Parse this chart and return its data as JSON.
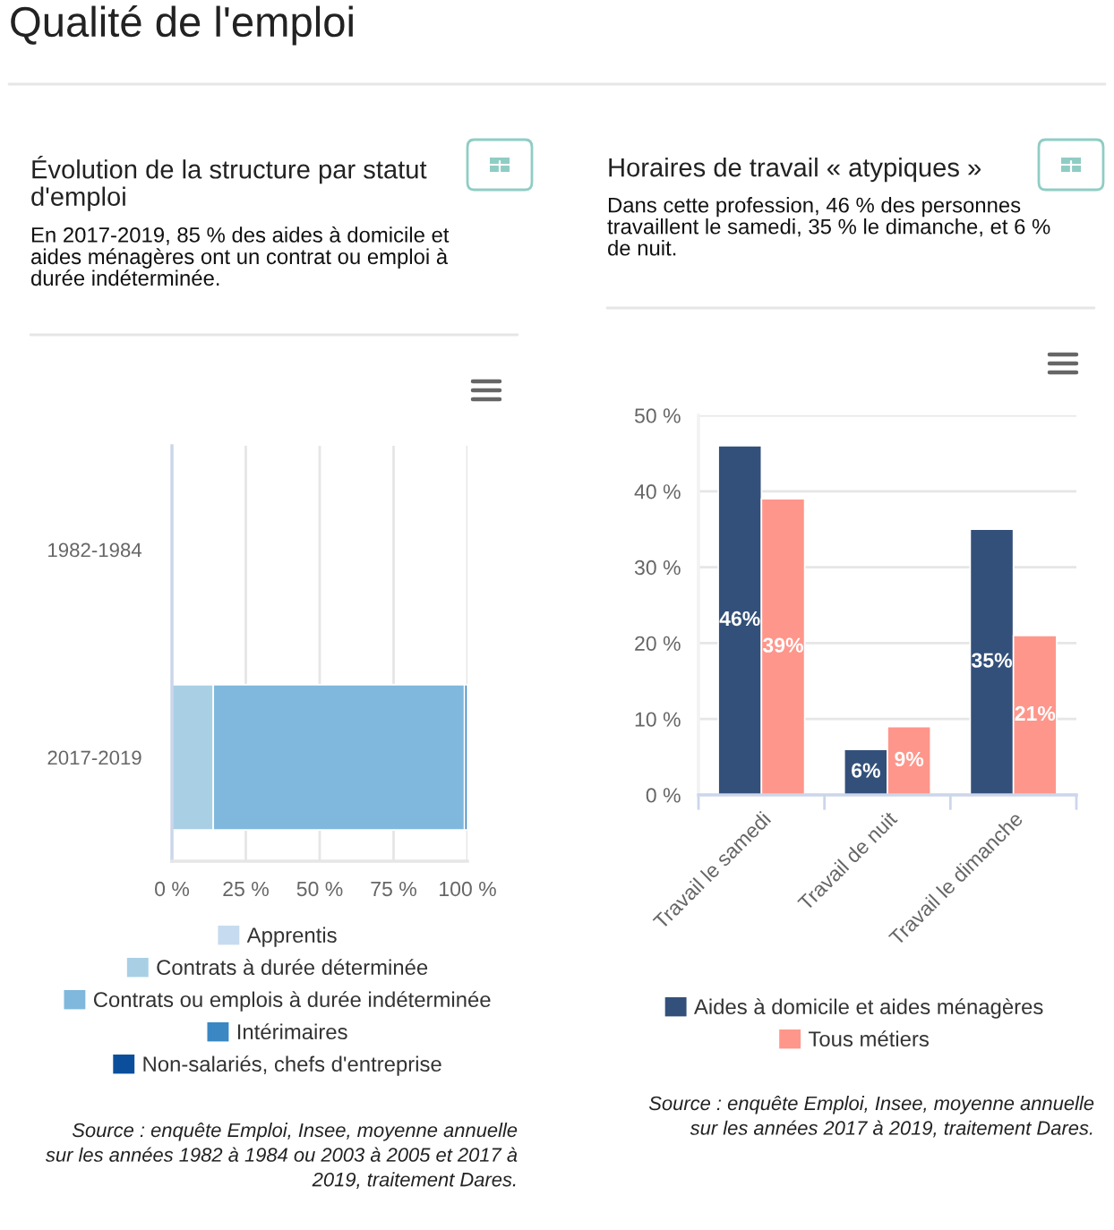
{
  "chart_data": [
    {
      "type": "other",
      "title": "Qualité de l'emploi"
    },
    {
      "type": "bar",
      "orientation": "horizontal",
      "stacked": true,
      "title": "Évolution de la structure par statut d'emploi",
      "subtitle": "En 2017-2019, 85 % des aides à domicile et aides ménagères ont un contrat ou emploi à durée indéterminée.",
      "categories": [
        "1982-1984",
        "2017-2019"
      ],
      "series": [
        {
          "name": "Apprentis",
          "color": "#c6dbef",
          "values": [
            null,
            null
          ]
        },
        {
          "name": "Contrats à durée déterminée",
          "color": "#a9cfe5",
          "values": [
            null,
            14
          ]
        },
        {
          "name": "Contrats ou emplois à durée indéterminée",
          "color": "#7fb8dc",
          "values": [
            null,
            85
          ]
        },
        {
          "name": "Intérimaires",
          "color": "#3a87c4",
          "values": [
            null,
            1
          ]
        },
        {
          "name": "Non-salariés, chefs d'entreprise",
          "color": "#0b4f9c",
          "values": [
            null,
            null
          ]
        }
      ],
      "xlim": [
        0,
        100
      ],
      "xticks": [
        {
          "value": 0,
          "label": "0 %"
        },
        {
          "value": 25,
          "label": "25 %"
        },
        {
          "value": 50,
          "label": "50 %"
        },
        {
          "value": 75,
          "label": "75 %"
        },
        {
          "value": 100,
          "label": "100 %"
        }
      ],
      "grid": "x",
      "legend": "bottom",
      "annotations": [
        "Source : enquête Emploi, Insee, moyenne annuelle sur les années 1982 à 1984 ou 2003 à 2005 et 2017 à 2019, traitement Dares."
      ]
    },
    {
      "type": "bar",
      "title": "Horaires de travail « atypiques »",
      "subtitle": "Dans cette profession, 46 % des personnes travaillent le samedi, 35 % le dimanche, et 6 % de nuit.",
      "categories": [
        "Travail le samedi",
        "Travail de nuit",
        "Travail le dimanche"
      ],
      "series": [
        {
          "name": "Aides à domicile et aides ménagères",
          "color": "#33507a",
          "values": [
            46,
            6,
            35
          ],
          "value_labels": [
            "46%",
            "6%",
            "35%"
          ]
        },
        {
          "name": "Tous métiers",
          "color": "#ff968b",
          "values": [
            39,
            9,
            21
          ],
          "value_labels": [
            "39%",
            "9%",
            "21%"
          ]
        }
      ],
      "ylim": [
        0,
        50
      ],
      "yticks": [
        {
          "value": 0,
          "label": "0 %"
        },
        {
          "value": 10,
          "label": "10 %"
        },
        {
          "value": 20,
          "label": "20 %"
        },
        {
          "value": 30,
          "label": "30 %"
        },
        {
          "value": 40,
          "label": "40 %"
        },
        {
          "value": 50,
          "label": "50 %"
        }
      ],
      "grid": "y",
      "legend": "bottom",
      "annotations": [
        "Source : enquête Emploi, Insee, moyenne annuelle sur les années 2017 à 2019, traitement Dares."
      ]
    }
  ]
}
